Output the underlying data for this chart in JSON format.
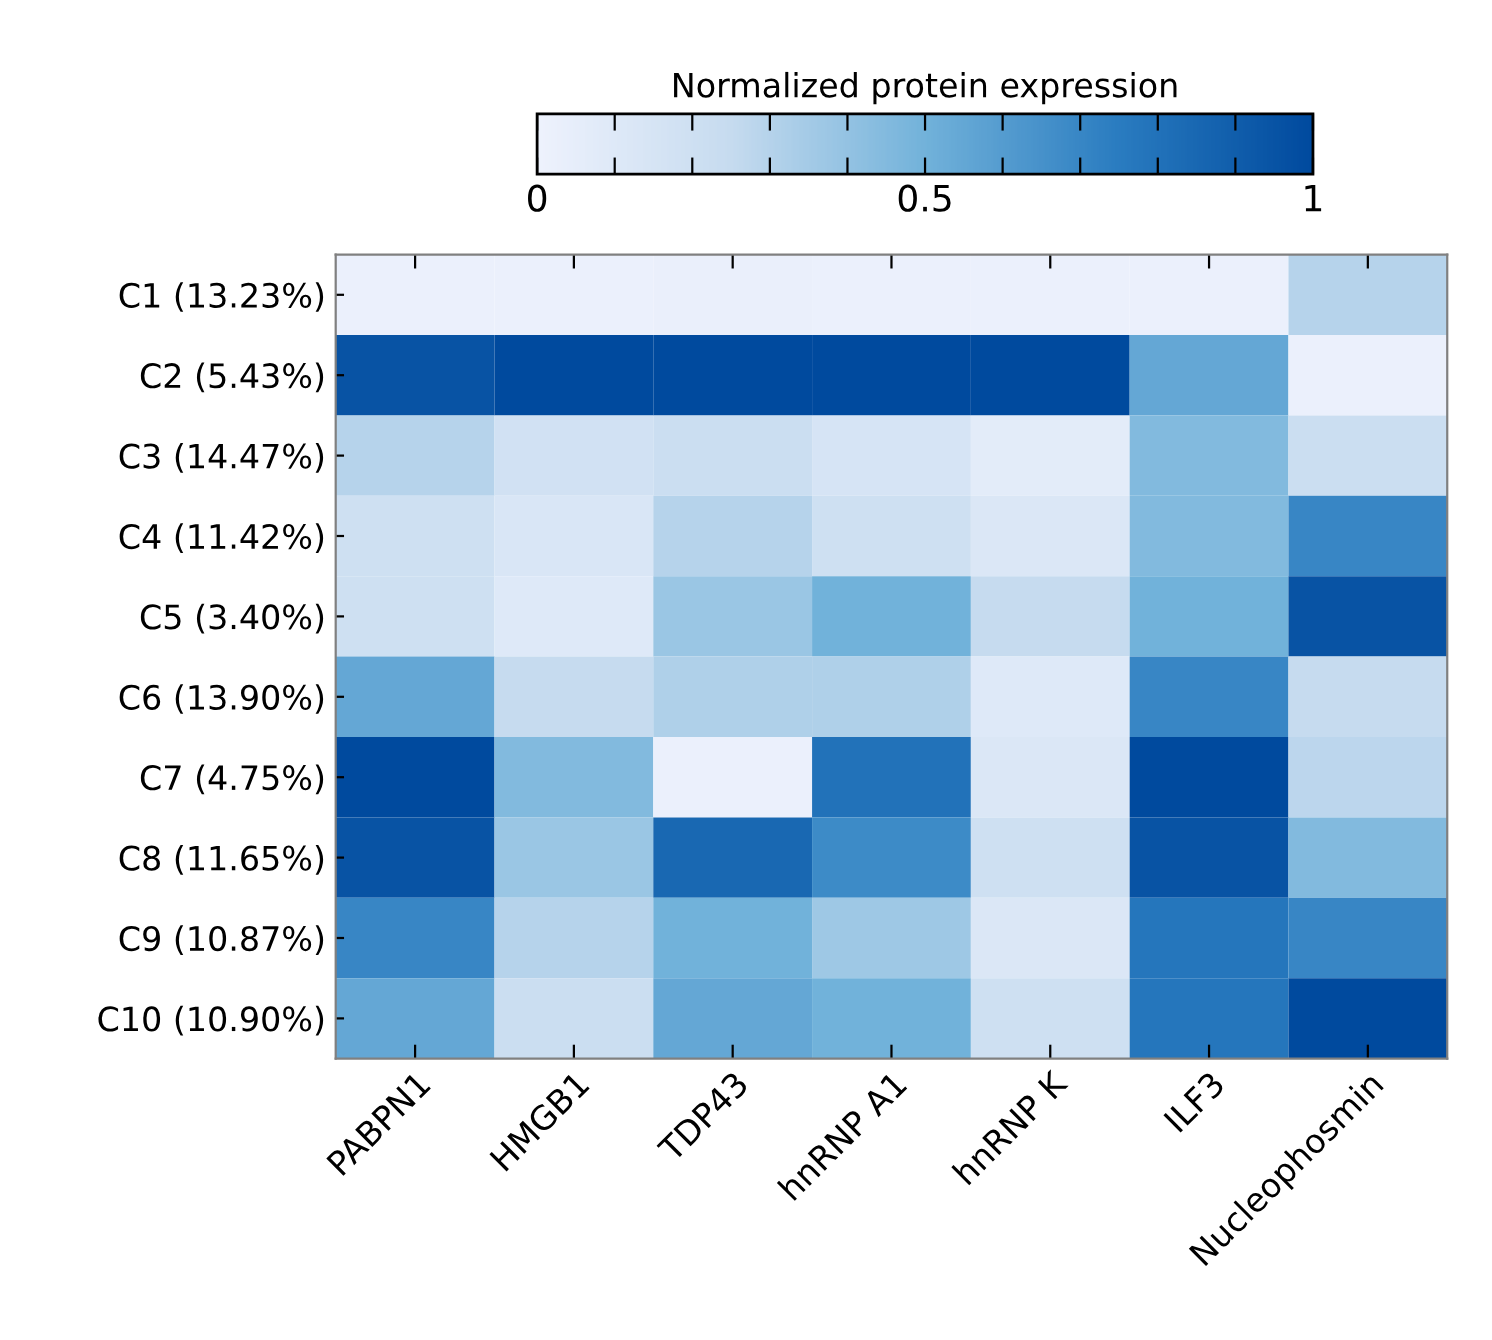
{
  "chart_data": {
    "type": "heatmap",
    "clabel": "Normalized protein expression",
    "categories": [
      "PABPN1",
      "HMGB1",
      "TDP43",
      "hnRNP A1",
      "hnRNP K",
      "ILF3",
      "Nucleophosmin"
    ],
    "y_categories": [
      "C1 (13.23%)",
      "C2 (5.43%)",
      "C3 (14.47%)",
      "C4 (11.42%)",
      "C5 (3.40%)",
      "C6 (13.90%)",
      "C7 (4.75%)",
      "C8 (11.65%)",
      "C9 (10.87%)",
      "C10 (10.90%)"
    ],
    "cells": [
      [
        0.02,
        0.02,
        0.03,
        0.02,
        0.02,
        0.02,
        0.3
      ],
      [
        0.95,
        1,
        1,
        1,
        1,
        0.55,
        0.02
      ],
      [
        0.3,
        0.18,
        0.22,
        0.15,
        0.07,
        0.45,
        0.22
      ],
      [
        0.2,
        0.13,
        0.3,
        0.2,
        0.12,
        0.45,
        0.7
      ],
      [
        0.2,
        0.1,
        0.38,
        0.5,
        0.25,
        0.5,
        0.95
      ],
      [
        0.55,
        0.25,
        0.32,
        0.32,
        0.1,
        0.7,
        0.25
      ],
      [
        1,
        0.45,
        0.02,
        0.8,
        0.12,
        1,
        0.28
      ],
      [
        0.95,
        0.38,
        0.85,
        0.68,
        0.2,
        0.95,
        0.45
      ],
      [
        0.7,
        0.3,
        0.5,
        0.37,
        0.12,
        0.78,
        0.7
      ],
      [
        0.55,
        0.22,
        0.55,
        0.5,
        0.2,
        0.78,
        1
      ]
    ],
    "clim": [
      0,
      1
    ],
    "cticks": [
      0,
      {
        "value": 0.1,
        "label": null
      },
      {
        "value": 0.2,
        "label": null
      },
      {
        "value": 0.3,
        "label": null
      },
      {
        "value": 0.4,
        "label": null
      },
      0.5,
      {
        "value": 0.6,
        "label": null
      },
      {
        "value": 0.7,
        "label": null
      },
      {
        "value": 0.8,
        "label": null
      },
      {
        "value": 0.9,
        "label": null
      },
      1
    ]
  }
}
